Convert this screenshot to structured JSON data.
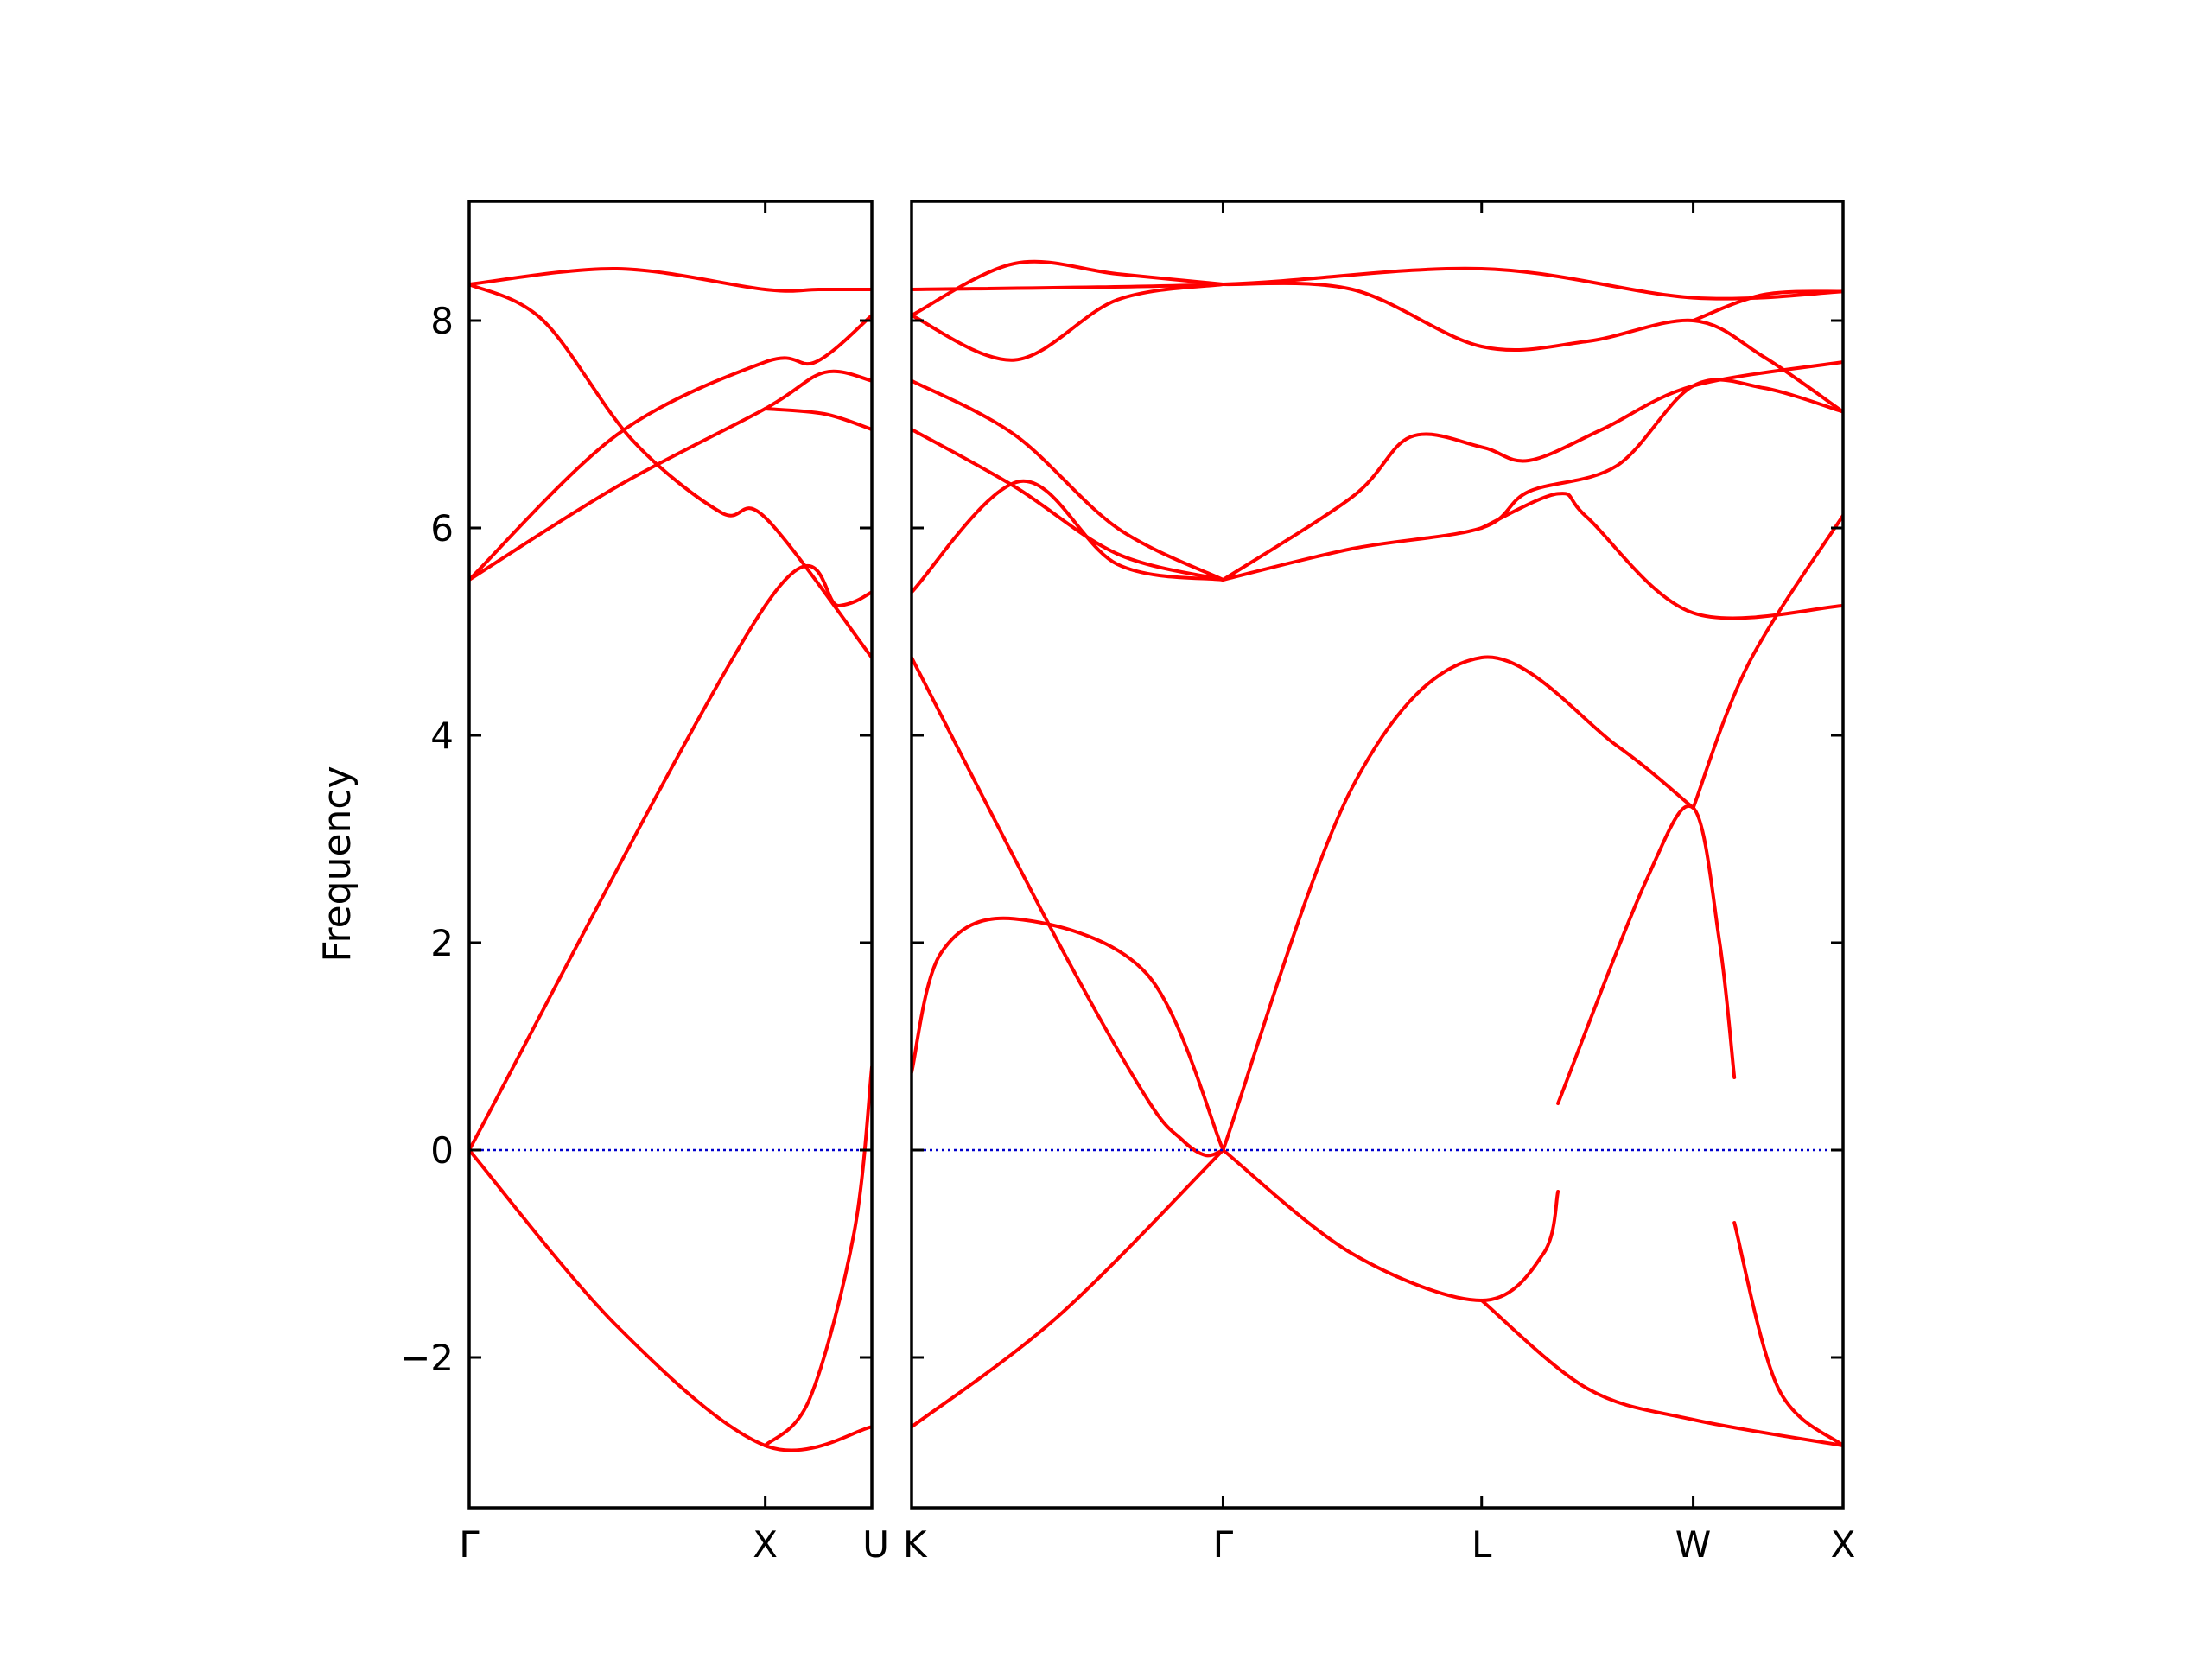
{
  "chart_data": {
    "type": "line",
    "title": "",
    "ylabel": "Frequency",
    "xlabel": "",
    "ylim": [
      -3.45,
      9.15
    ],
    "yticks": [
      -2,
      0,
      2,
      4,
      6,
      8
    ],
    "ytick_labels": [
      "−2",
      "0",
      "2",
      "4",
      "6",
      "8"
    ],
    "line_color": "#ff0000",
    "zero_line_color": "#0000cc",
    "grid": false,
    "legend": "none",
    "panels": [
      {
        "name": "Gamma-X-U",
        "xlim": [
          0,
          1.36
        ],
        "high_symmetry_points": [
          {
            "label": "Γ",
            "x": 0.0
          },
          {
            "label": "X",
            "x": 1.0
          },
          {
            "label": "U",
            "x": 1.36
          }
        ],
        "series": [
          {
            "x": [
              0,
              0.5,
              1.0,
              1.18,
              1.36
            ],
            "y": [
              8.35,
              8.5,
              8.3,
              8.3,
              8.3
            ]
          },
          {
            "x": [
              0,
              0.25,
              0.55,
              0.85,
              1.0,
              1.36
            ],
            "y": [
              8.35,
              8.0,
              6.85,
              6.15,
              6.1,
              4.75
            ]
          },
          {
            "x": [
              0,
              0.5,
              1.0,
              1.17,
              1.36
            ],
            "y": [
              5.5,
              6.9,
              7.6,
              7.6,
              8.05
            ]
          },
          {
            "x": [
              0,
              0.5,
              1.0,
              1.2,
              1.36
            ],
            "y": [
              5.5,
              6.4,
              7.15,
              7.5,
              7.42
            ]
          },
          {
            "x": [
              1.0,
              1.2,
              1.36
            ],
            "y": [
              7.15,
              7.1,
              6.95
            ]
          },
          {
            "x": [
              0,
              1.0,
              1.25,
              1.36
            ],
            "y": [
              0.0,
              5.25,
              5.25,
              5.38
            ]
          },
          {
            "x": [
              0,
              0.5,
              1.0,
              1.36
            ],
            "y": [
              0.0,
              -1.7,
              -2.85,
              -2.67
            ]
          },
          {
            "x": [
              1.0,
              1.15,
              1.3,
              1.36
            ],
            "y": [
              -2.85,
              -2.4,
              -0.8,
              0.8
            ]
          },
          {
            "x": [
              0,
              1.36
            ],
            "y": [
              0,
              0
            ],
            "zero_line": true
          }
        ]
      },
      {
        "name": "K-Gamma-L-W-X",
        "xlim": [
          0,
          3.17
        ],
        "high_symmetry_points": [
          {
            "label": "K",
            "x": 0.0
          },
          {
            "label": "Γ",
            "x": 1.06
          },
          {
            "label": "L",
            "x": 1.94
          },
          {
            "label": "W",
            "x": 2.66
          },
          {
            "label": "X",
            "x": 3.17
          }
        ],
        "series": [
          {
            "x": [
              0,
              1.06,
              1.94,
              2.66,
              3.17
            ],
            "y": [
              8.3,
              8.35,
              8.5,
              8.22,
              8.28
            ]
          },
          {
            "x": [
              0,
              0.35,
              0.7,
              1.06
            ],
            "y": [
              8.05,
              8.55,
              8.45,
              8.35
            ]
          },
          {
            "x": [
              0,
              0.35,
              0.7,
              1.06
            ],
            "y": [
              8.05,
              7.62,
              8.2,
              8.35
            ]
          },
          {
            "x": [
              1.06,
              1.5,
              1.94,
              2.3,
              2.66,
              2.9,
              3.17
            ],
            "y": [
              8.35,
              8.3,
              7.75,
              7.8,
              8.0,
              7.65,
              7.12
            ]
          },
          {
            "x": [
              2.66,
              2.9,
              3.17
            ],
            "y": [
              8.0,
              8.25,
              8.28
            ]
          },
          {
            "x": [
              0,
              0.35,
              0.7,
              1.06
            ],
            "y": [
              7.42,
              6.9,
              6.0,
              5.5
            ]
          },
          {
            "x": [
              0,
              0.35,
              0.7,
              1.06
            ],
            "y": [
              6.95,
              6.4,
              5.75,
              5.5
            ]
          },
          {
            "x": [
              0,
              0.37,
              0.7,
              1.06
            ],
            "y": [
              5.38,
              6.45,
              5.65,
              5.5
            ]
          },
          {
            "x": [
              1.06,
              1.5,
              1.7,
              1.94,
              2.1,
              2.35,
              2.66,
              3.17
            ],
            "y": [
              5.5,
              6.3,
              6.88,
              6.78,
              6.65,
              6.95,
              7.37,
              7.6
            ]
          },
          {
            "x": [
              1.06,
              1.5,
              1.94,
              2.1,
              2.4,
              2.66,
              2.9,
              3.17
            ],
            "y": [
              5.5,
              5.8,
              6.0,
              6.35,
              6.6,
              7.37,
              7.35,
              7.12
            ]
          },
          {
            "x": [
              1.94,
              2.2,
              2.3,
              2.66,
              3.17
            ],
            "y": [
              6.0,
              6.33,
              6.1,
              5.18,
              5.25
            ]
          },
          {
            "x": [
              0,
              0.5,
              0.8,
              0.92,
              1.0,
              1.06
            ],
            "y": [
              4.75,
              2.0,
              0.5,
              0.1,
              -0.05,
              0.0
            ]
          },
          {
            "x": [
              0,
              0.1,
              0.35,
              0.8,
              1.06
            ],
            "y": [
              0.75,
              1.9,
              2.23,
              1.7,
              0.0
            ]
          },
          {
            "x": [
              1.06,
              1.5,
              1.94,
              2.4,
              2.66
            ],
            "y": [
              0.0,
              3.5,
              4.75,
              3.9,
              3.3
            ]
          },
          {
            "x": [
              2.66,
              2.85,
              3.17
            ],
            "y": [
              3.3,
              4.7,
              6.12
            ]
          },
          {
            "x": [
              2.2,
              2.5,
              2.66,
              2.75,
              2.8
            ],
            "y": [
              0.45,
              2.6,
              3.3,
              2.0,
              0.7
            ]
          },
          {
            "x": [
              1.06,
              1.5,
              1.94,
              2.15,
              2.2
            ],
            "y": [
              0.0,
              -1.0,
              -1.45,
              -1.0,
              -0.4
            ]
          },
          {
            "x": [
              1.94,
              2.3,
              2.66,
              3.17
            ],
            "y": [
              -1.45,
              -2.3,
              -2.6,
              -2.85
            ]
          },
          {
            "x": [
              2.8,
              2.95,
              3.17
            ],
            "y": [
              -0.7,
              -2.3,
              -2.85
            ]
          },
          {
            "x": [
              0,
              0.5,
              1.06
            ],
            "y": [
              -2.67,
              -1.6,
              0.0
            ]
          },
          {
            "x": [
              0,
              3.17
            ],
            "y": [
              0,
              0
            ],
            "zero_line": true
          }
        ]
      }
    ]
  }
}
